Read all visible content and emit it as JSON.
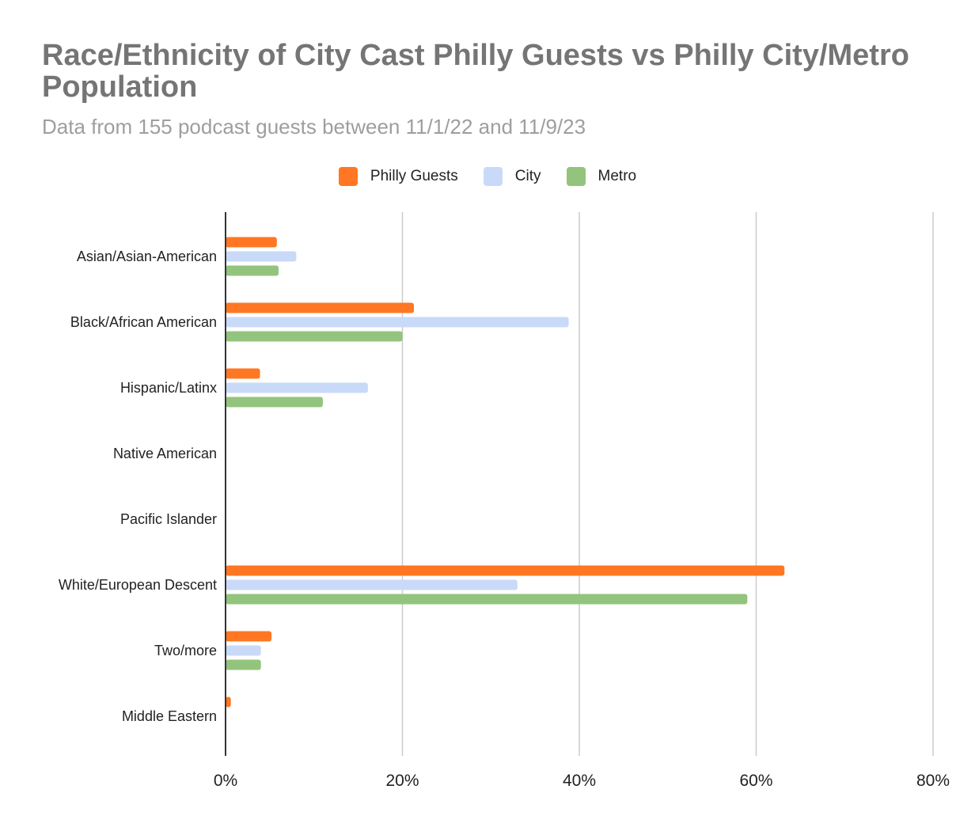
{
  "chart_data": {
    "type": "bar",
    "orientation": "horizontal",
    "title": "Race/Ethnicity of City Cast Philly Guests vs Philly City/Metro Population",
    "subtitle": "Data from 155 podcast guests between 11/1/22 and 11/9/23",
    "categories": [
      "Asian/Asian-American",
      "Black/African American",
      "Hispanic/Latinx",
      "Native American",
      "Pacific Islander",
      "White/European Descent",
      "Two/more",
      "Middle Eastern"
    ],
    "series": [
      {
        "name": "Philly Guests",
        "color": "#ff7722",
        "values": [
          5.8,
          21.3,
          3.9,
          0,
          0,
          63.2,
          5.2,
          0.6
        ]
      },
      {
        "name": "City",
        "color": "#c9daf8",
        "values": [
          8.0,
          38.8,
          16.1,
          0,
          0,
          33.0,
          4.0,
          0
        ]
      },
      {
        "name": "Metro",
        "color": "#93c47d",
        "values": [
          6.0,
          20.0,
          11.0,
          0,
          0,
          59.0,
          4.0,
          0
        ]
      }
    ],
    "xlim": [
      0,
      80
    ],
    "xticks": [
      0,
      20,
      40,
      60,
      80
    ],
    "xtick_labels": [
      "0%",
      "20%",
      "40%",
      "60%",
      "80%"
    ],
    "xlabel": "",
    "ylabel": "",
    "grid": true,
    "legend_position": "top-center"
  }
}
